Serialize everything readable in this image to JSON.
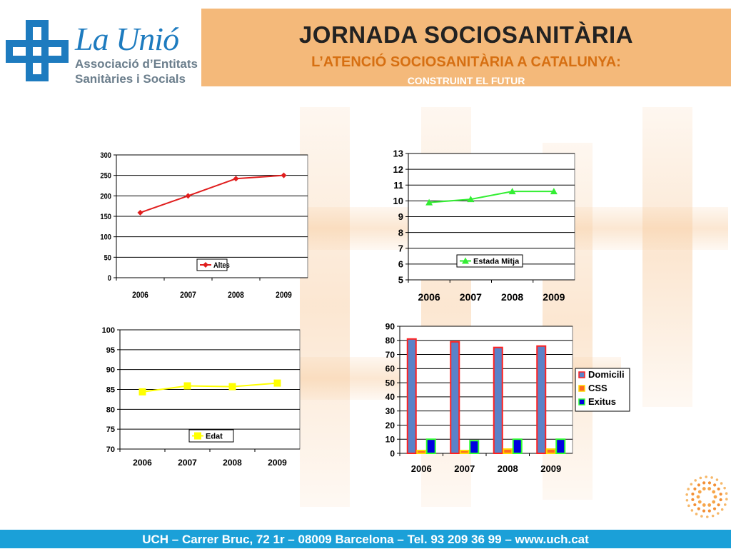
{
  "header": {
    "title": "JORNADA SOCIOSANITÀRIA",
    "subtitle": "L’ATENCIÓ SOCIOSANITÀRIA A CATALUNYA:",
    "subtitle2": "CONSTRUINT EL FUTUR"
  },
  "logo": {
    "name": "La Unió",
    "line1": "Associació d’Entitats",
    "line2": "Sanitàries i Socials"
  },
  "footer": {
    "text": "UCH – Carrer Bruc, 72 1r – 08009 Barcelona – Tel. 93 209 36 99 – www.uch.cat"
  },
  "colors": {
    "header_band": "#f4b97a",
    "footer_band": "#1ba0d8",
    "logo_blue": "#1d7bbf"
  },
  "chart_data": [
    {
      "type": "line",
      "categories": [
        "2006",
        "2007",
        "2008",
        "2009"
      ],
      "series": [
        {
          "name": "Altes",
          "values": [
            159,
            200,
            242,
            250
          ],
          "color": "#e01e1e",
          "marker": "diamond"
        }
      ],
      "ylim": [
        0,
        300
      ],
      "yticks": [
        "0",
        "50",
        "100",
        "150",
        "200",
        "250",
        "300"
      ],
      "grid": true,
      "legend": "bottom-right"
    },
    {
      "type": "line",
      "categories": [
        "2006",
        "2007",
        "2008",
        "2009"
      ],
      "series": [
        {
          "name": "Estada Mitja",
          "values": [
            9.9,
            10.1,
            10.6,
            10.6
          ],
          "color": "#33ee33",
          "marker": "triangle"
        }
      ],
      "ylim": [
        5,
        13
      ],
      "yticks": [
        "5",
        "6",
        "7",
        "8",
        "9",
        "10",
        "11",
        "12",
        "13"
      ],
      "grid": true,
      "legend": "bottom-right"
    },
    {
      "type": "line",
      "categories": [
        "2006",
        "2007",
        "2008",
        "2009"
      ],
      "series": [
        {
          "name": "Edat",
          "values": [
            84.4,
            85.9,
            85.7,
            86.6
          ],
          "color": "#ffff00",
          "marker": "square"
        }
      ],
      "ylim": [
        70,
        100
      ],
      "yticks": [
        "70",
        "75",
        "80",
        "85",
        "90",
        "95",
        "100"
      ],
      "grid": true,
      "legend": "bottom-right"
    },
    {
      "type": "bar",
      "categories": [
        "2006",
        "2007",
        "2008",
        "2009"
      ],
      "series": [
        {
          "name": "Domicili",
          "values": [
            81,
            79,
            75,
            76
          ],
          "color": "#5b82c8",
          "edge": "#ff2020"
        },
        {
          "name": "CSS",
          "values": [
            2,
            2,
            3,
            3
          ],
          "color": "#ff6820",
          "edge": "#ffd800"
        },
        {
          "name": "Exitus",
          "values": [
            10,
            9,
            10,
            10
          ],
          "color": "#0000e0",
          "edge": "#30ff30"
        }
      ],
      "ylim": [
        0,
        90
      ],
      "yticks": [
        "0",
        "10",
        "20",
        "30",
        "40",
        "50",
        "60",
        "70",
        "80",
        "90"
      ],
      "grid": true,
      "legend": "right"
    }
  ]
}
